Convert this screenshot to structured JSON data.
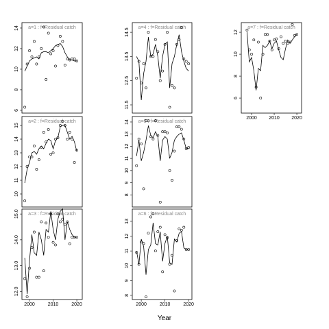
{
  "xlabel": "Year",
  "chart_data": [
    {
      "type": "scatter",
      "title": "a=1 : f=Residual catch",
      "x": [
        1998,
        1999,
        2000,
        2001,
        2002,
        2003,
        2004,
        2005,
        2006,
        2007,
        2008,
        2009,
        2010,
        2011,
        2012,
        2013,
        2014,
        2015,
        2016,
        2017,
        2018,
        2019,
        2020
      ],
      "series": [
        {
          "style": "points",
          "values": [
            6.3,
            10.5,
            11.8,
            11.2,
            12.7,
            10.5,
            11.2,
            12.0,
            14.1,
            9.0,
            13.5,
            11.5,
            11.8,
            10.3,
            12.3,
            13.2,
            12.7,
            10.4,
            11.0,
            10.9,
            11.0,
            11.0,
            10.8
          ]
        },
        {
          "style": "line",
          "values": [
            9.8,
            10.3,
            10.8,
            11.0,
            11.1,
            11.2,
            11.0,
            11.6,
            11.7,
            11.7,
            11.6,
            11.8,
            12.0,
            12.3,
            12.4,
            12.5,
            12.2,
            11.6,
            11.2,
            10.9,
            10.9,
            10.8,
            10.8
          ]
        }
      ],
      "xlim": [
        1996.8,
        2022.3
      ],
      "ylim": [
        5.73,
        14.53
      ],
      "yticks": [
        6,
        8,
        10,
        12,
        14
      ]
    },
    {
      "type": "scatter",
      "title": "a=2 : f=Residual catch",
      "x": [
        1998,
        1999,
        2000,
        2001,
        2002,
        2003,
        2004,
        2005,
        2006,
        2007,
        2008,
        2009,
        2010,
        2011,
        2012,
        2013,
        2014,
        2015,
        2016,
        2017,
        2018,
        2019,
        2020
      ],
      "series": [
        {
          "style": "points",
          "values": [
            9.5,
            12.0,
            12.7,
            12.7,
            13.5,
            11.8,
            12.5,
            13.4,
            14.5,
            13.8,
            14.7,
            12.9,
            13.0,
            14.0,
            14.1,
            15.0,
            15.3,
            15.0,
            14.0,
            14.5,
            14.0,
            12.3,
            13.2
          ]
        },
        {
          "style": "line",
          "values": [
            10.8,
            11.8,
            12.3,
            13.0,
            13.1,
            12.9,
            13.3,
            13.5,
            13.3,
            13.7,
            14.0,
            13.9,
            13.3,
            13.9,
            14.1,
            14.9,
            15.0,
            15.0,
            14.5,
            14.0,
            14.2,
            13.8,
            13.1
          ]
        }
      ],
      "xlim": [
        1996.8,
        2022.3
      ],
      "ylim": [
        9.05,
        15.65
      ],
      "yticks": [
        10,
        11,
        12,
        13,
        14,
        15
      ]
    },
    {
      "type": "scatter",
      "title": "a=3 : f=Residual catch",
      "x": [
        1998,
        1999,
        2000,
        2001,
        2002,
        2003,
        2004,
        2005,
        2006,
        2007,
        2008,
        2009,
        2010,
        2011,
        2012,
        2013,
        2014,
        2015,
        2016,
        2017,
        2018,
        2019,
        2020
      ],
      "series": [
        {
          "style": "points",
          "values": [
            12.5,
            11.8,
            12.9,
            13.7,
            14.3,
            12.55,
            12.55,
            14.7,
            12.8,
            14.65,
            14.1,
            15.0,
            13.9,
            13.8,
            15.0,
            14.7,
            14.8,
            14.6,
            14.7,
            13.85,
            14.1,
            14.1,
            14.1
          ]
        },
        {
          "style": "line",
          "values": [
            13.3,
            11.9,
            13.2,
            14.2,
            13.5,
            13.4,
            14.3,
            14.0,
            13.4,
            14.4,
            14.3,
            15.1,
            14.4,
            14.0,
            14.8,
            15.1,
            15.2,
            14.0,
            14.7,
            14.4,
            14.2,
            14.1,
            14.1
          ]
        }
      ],
      "xlim": [
        1996.8,
        2022.3
      ],
      "ylim": [
        11.69,
        15.19
      ],
      "yticks": [
        {
          "value": 12,
          "label": "12.0"
        },
        {
          "value": 13,
          "label": "13.0"
        },
        {
          "value": 14,
          "label": "14.0"
        },
        {
          "value": 15,
          "label": "15.0"
        }
      ],
      "xticks": [
        2000,
        2010,
        2020
      ]
    },
    {
      "type": "scatter",
      "title": "a=4 : f=Residual catch",
      "x": [
        1998,
        1999,
        2000,
        2001,
        2002,
        2003,
        2004,
        2005,
        2006,
        2007,
        2008,
        2009,
        2010,
        2011,
        2012,
        2013,
        2014,
        2015,
        2016,
        2017,
        2018,
        2019,
        2020
      ],
      "series": [
        {
          "style": "points",
          "values": [
            12.6,
            13.3,
            12.4,
            13.2,
            12.2,
            14.5,
            13.5,
            13.5,
            14.2,
            13.7,
            12.5,
            12.9,
            14.0,
            14.5,
            11.4,
            12.3,
            12.2,
            14.0,
            14.2,
            14.7,
            13.4,
            13.3,
            13.2
          ]
        },
        {
          "style": "line",
          "values": [
            13.5,
            13.3,
            11.7,
            12.8,
            13.3,
            14.3,
            13.5,
            13.6,
            14.0,
            13.5,
            12.6,
            13.5,
            14.0,
            14.1,
            12.2,
            13.2,
            13.5,
            14.0,
            14.4,
            13.7,
            13.3,
            13.0,
            12.9
          ]
        }
      ],
      "xlim": [
        1996.2,
        2021.4
      ],
      "ylim": [
        11.16,
        14.9
      ],
      "yticks": [
        11.5,
        12.5,
        13.5,
        14.5
      ]
    },
    {
      "type": "scatter",
      "title": "a=5 : f=Residual catch",
      "x": [
        1998,
        1999,
        2000,
        2001,
        2002,
        2003,
        2004,
        2005,
        2006,
        2007,
        2008,
        2009,
        2010,
        2011,
        2012,
        2013,
        2014,
        2015,
        2016,
        2017,
        2018,
        2019,
        2020
      ],
      "series": [
        {
          "style": "points",
          "values": [
            10.4,
            12.6,
            12.2,
            8.5,
            14.1,
            14.1,
            12.8,
            12.6,
            14.1,
            12.9,
            7.4,
            13.2,
            13.2,
            13.1,
            10.0,
            9.2,
            11.6,
            13.6,
            13.6,
            13.4,
            12.6,
            11.8,
            11.9
          ]
        },
        {
          "style": "line",
          "values": [
            11.2,
            12.5,
            10.8,
            11.5,
            12.5,
            13.7,
            12.9,
            12.7,
            13.2,
            12.8,
            10.8,
            12.5,
            12.8,
            12.6,
            11.0,
            11.5,
            12.5,
            12.8,
            13.0,
            13.1,
            12.5,
            11.8,
            11.8
          ]
        }
      ],
      "xlim": [
        1996.2,
        2021.4
      ],
      "ylim": [
        7.0,
        14.45
      ],
      "yticks": [
        8,
        9,
        10,
        11,
        12,
        13,
        14
      ]
    },
    {
      "type": "scatter",
      "title": "a=6 : f=Residual catch",
      "x": [
        1998,
        1999,
        2000,
        2001,
        2002,
        2003,
        2004,
        2005,
        2006,
        2007,
        2008,
        2009,
        2010,
        2011,
        2012,
        2013,
        2014,
        2015,
        2016,
        2017,
        2018,
        2019,
        2020
      ],
      "series": [
        {
          "style": "points",
          "values": [
            10.9,
            10.1,
            11.6,
            11.5,
            7.9,
            12.2,
            13.3,
            13.5,
            11.0,
            12.3,
            12.6,
            9.6,
            12.1,
            11.9,
            10.1,
            10.7,
            8.3,
            11.7,
            12.5,
            12.4,
            12.6,
            11.1,
            11.1
          ]
        },
        {
          "style": "line",
          "values": [
            11.0,
            10.1,
            11.8,
            11.3,
            9.4,
            11.1,
            11.4,
            12.9,
            11.5,
            11.4,
            12.3,
            10.3,
            11.5,
            12.0,
            10.2,
            10.1,
            11.8,
            11.6,
            12.2,
            12.3,
            11.2,
            11.1,
            11.1
          ]
        }
      ],
      "xlim": [
        1996.2,
        2021.4
      ],
      "ylim": [
        7.72,
        13.83
      ],
      "yticks": [
        8,
        9,
        10,
        11,
        12,
        13
      ],
      "xticks": [
        2000,
        2010,
        2020
      ]
    },
    {
      "type": "scatter",
      "title": "a=7 : f=Residual catch",
      "x": [
        1998,
        1999,
        2000,
        2001,
        2002,
        2003,
        2004,
        2005,
        2006,
        2007,
        2008,
        2009,
        2010,
        2011,
        2012,
        2013,
        2014,
        2015,
        2016,
        2017,
        2018,
        2019,
        2020
      ],
      "series": [
        {
          "style": "points",
          "values": [
            12.2,
            10.4,
            10.0,
            11.3,
            7.0,
            11.1,
            6.0,
            10.0,
            11.8,
            11.8,
            11.2,
            10.4,
            11.3,
            11.4,
            10.5,
            11.6,
            11.0,
            11.2,
            11.0,
            11.1,
            12.7,
            11.7,
            11.8
          ]
        },
        {
          "style": "line",
          "values": [
            12.0,
            9.3,
            9.7,
            8.5,
            6.7,
            8.7,
            8.5,
            10.8,
            10.6,
            10.8,
            11.2,
            10.5,
            11.0,
            11.2,
            10.4,
            9.7,
            9.5,
            10.5,
            11.3,
            11.0,
            11.3,
            11.6,
            11.8
          ]
        }
      ],
      "xlim": [
        1995.45,
        2022.1
      ],
      "ylim": [
        4.63,
        12.88
      ],
      "yticks": [
        6,
        8,
        10,
        12
      ],
      "xticks": [
        2000,
        2010,
        2020
      ]
    }
  ]
}
